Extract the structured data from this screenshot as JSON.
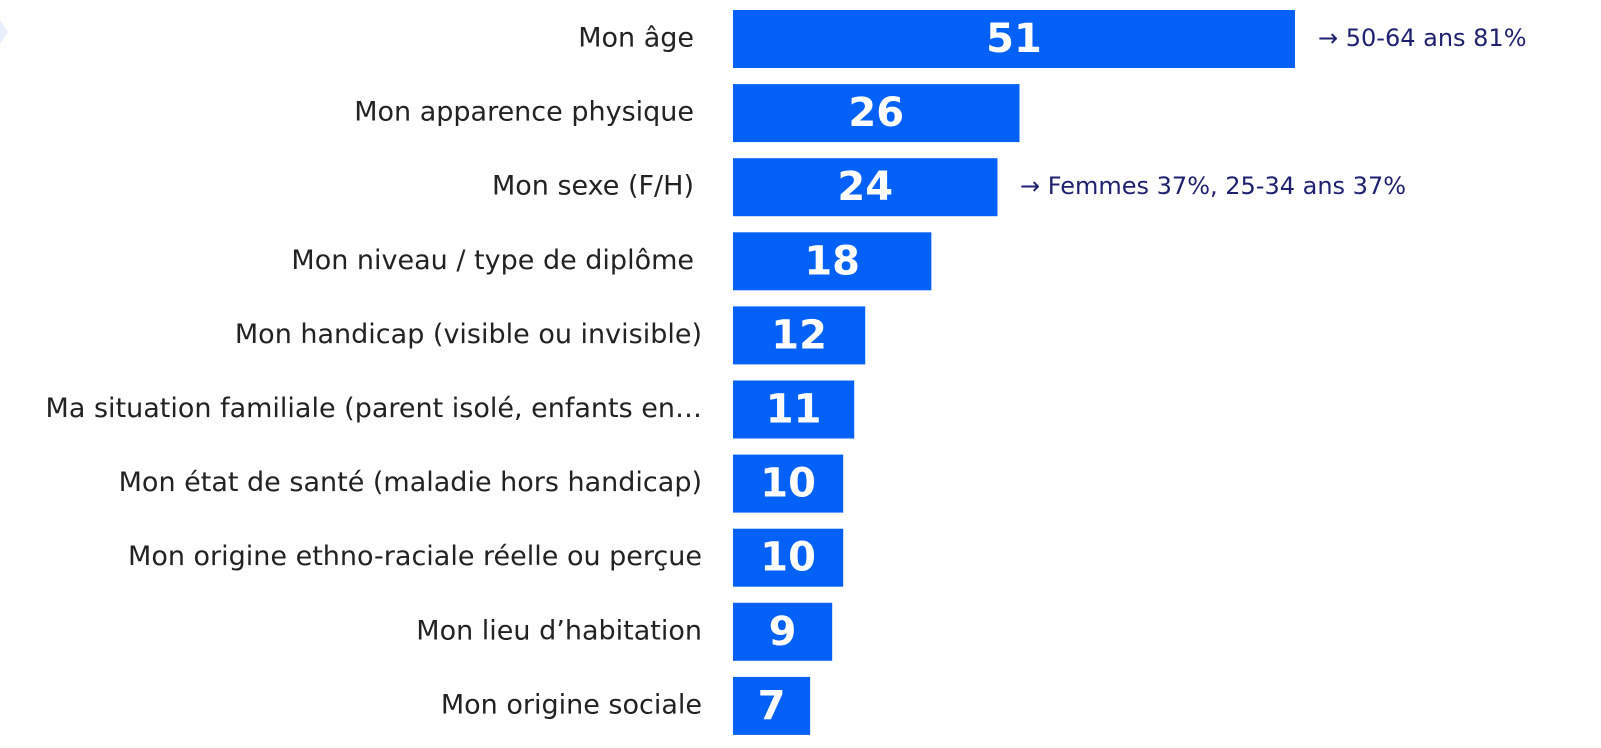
{
  "chart_data": {
    "type": "bar",
    "orientation": "horizontal",
    "color": "#0461f8",
    "categories": [
      "Mon âge",
      "Mon apparence physique",
      "Mon sexe (F/H)",
      "Mon niveau / type de diplôme",
      "Mon handicap (visible ou invisible)",
      "Ma situation familiale (parent isolé, enfants en…",
      "Mon état de santé (maladie hors handicap)",
      "Mon origine ethno-raciale réelle ou perçue",
      "Mon lieu d’habitation",
      "Mon origine sociale"
    ],
    "values": [
      51,
      26,
      24,
      18,
      12,
      11,
      10,
      10,
      9,
      7
    ],
    "annotations": [
      "→ 50-64 ans 81%",
      "→ Femmes 37%, 25-34 ans 37%"
    ]
  }
}
